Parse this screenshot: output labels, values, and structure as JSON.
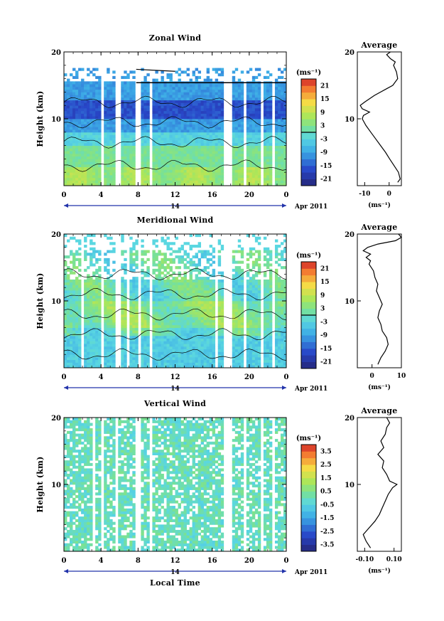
{
  "chart_data": [
    {
      "type": "heatmap",
      "title": "Zonal Wind",
      "ylabel": "Height (km)",
      "xlabel": "",
      "date_label": "Apr 2011",
      "day_label": "14",
      "x_ticks": [
        "0",
        "4",
        "8",
        "12",
        "16",
        "20",
        "0"
      ],
      "y_ticks": [
        "10",
        "20"
      ],
      "ylim": [
        0,
        20
      ],
      "xlim": [
        0,
        24
      ],
      "colorbar": {
        "unit": "(ms⁻¹)",
        "ticks": [
          "21",
          "15",
          "9",
          "3",
          "-3",
          "-9",
          "-15",
          "-21"
        ],
        "min": -24,
        "max": 24
      },
      "gaps": [
        [
          4.0,
          4.4
        ],
        [
          5.6,
          6.0
        ],
        [
          7.6,
          7.9
        ],
        [
          7.9,
          8.3
        ],
        [
          9.3,
          9.6
        ],
        [
          17.3,
          18.2
        ],
        [
          19.5,
          19.8
        ],
        [
          21.3,
          21.6
        ],
        [
          22.6,
          22.9
        ]
      ],
      "profile": {
        "title": "Average",
        "xlabel": "(ms⁻¹)",
        "x_ticks": [
          "-10",
          "0"
        ],
        "xlim": [
          -13,
          5
        ],
        "points": [
          [
            3.5,
            0.5
          ],
          [
            4.5,
            1.0
          ],
          [
            3.8,
            2.0
          ],
          [
            2.0,
            3.0
          ],
          [
            0.2,
            4.0
          ],
          [
            -1.5,
            5.0
          ],
          [
            -3.5,
            6.0
          ],
          [
            -5.5,
            7.0
          ],
          [
            -7.5,
            8.0
          ],
          [
            -9.5,
            9.0
          ],
          [
            -11.0,
            10.0
          ],
          [
            -10.5,
            10.5
          ],
          [
            -8.0,
            11.0
          ],
          [
            -11.0,
            11.5
          ],
          [
            -11.8,
            12.0
          ],
          [
            -10.0,
            12.5
          ],
          [
            -6.0,
            13.5
          ],
          [
            -1.0,
            14.5
          ],
          [
            1.5,
            15.0
          ],
          [
            3.5,
            16.0
          ],
          [
            3.0,
            17.0
          ],
          [
            1.8,
            18.0
          ],
          [
            2.5,
            18.5
          ],
          [
            0.5,
            19.0
          ],
          [
            -1.0,
            19.6
          ],
          [
            0.5,
            20.0
          ]
        ]
      }
    },
    {
      "type": "heatmap",
      "title": "Meridional Wind",
      "ylabel": "Height (km)",
      "xlabel": "",
      "date_label": "Apr 2011",
      "day_label": "14",
      "x_ticks": [
        "0",
        "4",
        "8",
        "12",
        "16",
        "20",
        "0"
      ],
      "y_ticks": [
        "10",
        "20"
      ],
      "ylim": [
        0,
        20
      ],
      "xlim": [
        0,
        24
      ],
      "colorbar": {
        "unit": "(ms⁻¹)",
        "ticks": [
          "21",
          "15",
          "9",
          "3",
          "-3",
          "-9",
          "-15",
          "-21"
        ],
        "min": -24,
        "max": 24
      },
      "gaps": [
        [
          1.8,
          2.1
        ],
        [
          4.0,
          4.4
        ],
        [
          5.6,
          6.0
        ],
        [
          6.8,
          7.2
        ],
        [
          7.9,
          8.4
        ],
        [
          9.3,
          9.6
        ],
        [
          16.3,
          16.6
        ],
        [
          17.3,
          18.3
        ],
        [
          19.5,
          19.8
        ],
        [
          21.3,
          21.6
        ],
        [
          22.6,
          22.9
        ]
      ],
      "profile": {
        "title": "Average",
        "xlabel": "(ms⁻¹)",
        "x_ticks": [
          "0",
          "10"
        ],
        "xlim": [
          -5,
          10
        ],
        "points": [
          [
            2.0,
            0.5
          ],
          [
            3.0,
            1.5
          ],
          [
            4.5,
            2.5
          ],
          [
            5.5,
            3.5
          ],
          [
            5.0,
            4.5
          ],
          [
            3.5,
            5.5
          ],
          [
            3.0,
            6.5
          ],
          [
            2.0,
            7.5
          ],
          [
            2.5,
            8.5
          ],
          [
            3.5,
            9.5
          ],
          [
            2.5,
            10.5
          ],
          [
            1.5,
            11.5
          ],
          [
            2.0,
            12.5
          ],
          [
            1.0,
            13.5
          ],
          [
            0.5,
            14.5
          ],
          [
            -1.0,
            15.5
          ],
          [
            -0.5,
            16.0
          ],
          [
            -2.0,
            16.5
          ],
          [
            -0.5,
            17.0
          ],
          [
            -3.0,
            17.5
          ],
          [
            -1.5,
            18.0
          ],
          [
            2.0,
            18.5
          ],
          [
            8.0,
            19.0
          ],
          [
            10.0,
            19.5
          ],
          [
            9.0,
            20.0
          ]
        ]
      }
    },
    {
      "type": "heatmap",
      "title": "Vertical Wind",
      "ylabel": "Height (km)",
      "xlabel": "Local Time",
      "date_label": "Apr 2011",
      "day_label": "14",
      "x_ticks": [
        "0",
        "4",
        "8",
        "12",
        "16",
        "20",
        "0"
      ],
      "y_ticks": [
        "10",
        "20"
      ],
      "ylim": [
        0,
        20
      ],
      "xlim": [
        0,
        24
      ],
      "colorbar": {
        "unit": "(ms⁻¹)",
        "ticks": [
          "3.5",
          "2.5",
          "1.5",
          "0.5",
          "-0.5",
          "-1.5",
          "-2.5",
          "-3.5"
        ],
        "min": -4,
        "max": 4
      },
      "gaps": [
        [
          3.0,
          3.3
        ],
        [
          3.9,
          4.3
        ],
        [
          5.5,
          5.8
        ],
        [
          7.8,
          8.3
        ],
        [
          9.3,
          9.6
        ],
        [
          17.3,
          18.3
        ],
        [
          19.5,
          19.8
        ],
        [
          21.3,
          21.6
        ],
        [
          22.6,
          22.9
        ]
      ],
      "profile": {
        "title": "Average",
        "xlabel": "(ms⁻¹)",
        "x_ticks": [
          "-0.10",
          "0.10"
        ],
        "xlim": [
          -0.15,
          0.15
        ],
        "points": [
          [
            -0.06,
            0.5
          ],
          [
            -0.09,
            1.5
          ],
          [
            -0.11,
            2.5
          ],
          [
            -0.07,
            3.5
          ],
          [
            -0.03,
            4.5
          ],
          [
            0.0,
            5.5
          ],
          [
            0.02,
            6.5
          ],
          [
            0.04,
            7.5
          ],
          [
            0.06,
            8.5
          ],
          [
            0.09,
            9.5
          ],
          [
            0.12,
            10.0
          ],
          [
            0.07,
            10.5
          ],
          [
            0.05,
            11.5
          ],
          [
            0.02,
            12.5
          ],
          [
            0.03,
            13.5
          ],
          [
            -0.01,
            14.5
          ],
          [
            0.03,
            15.5
          ],
          [
            0.01,
            16.5
          ],
          [
            0.04,
            17.5
          ],
          [
            0.05,
            18.5
          ],
          [
            0.07,
            19.2
          ],
          [
            0.05,
            20.0
          ]
        ]
      }
    }
  ]
}
